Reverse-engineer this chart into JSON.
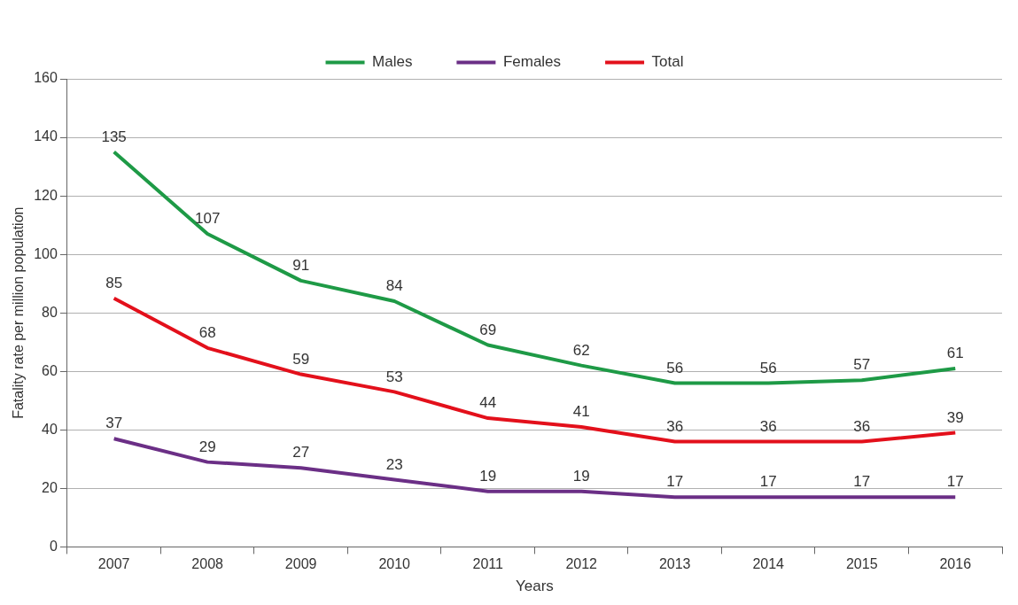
{
  "chart_data": {
    "type": "line",
    "xlabel": "Years",
    "ylabel": "Fatality rate per million population",
    "categories": [
      "2007",
      "2008",
      "2009",
      "2010",
      "2011",
      "2012",
      "2013",
      "2014",
      "2015",
      "2016"
    ],
    "series": [
      {
        "name": "Males",
        "color": "#1e9a46",
        "values": [
          135,
          107,
          91,
          84,
          69,
          62,
          56,
          56,
          57,
          61
        ]
      },
      {
        "name": "Females",
        "color": "#6b2f86",
        "values": [
          37,
          29,
          27,
          23,
          19,
          19,
          17,
          17,
          17,
          17
        ]
      },
      {
        "name": "Total",
        "color": "#e3101b",
        "values": [
          85,
          68,
          59,
          53,
          44,
          41,
          36,
          36,
          36,
          39
        ]
      }
    ],
    "ylim": [
      0,
      160
    ],
    "yticks": [
      0,
      20,
      40,
      60,
      80,
      100,
      120,
      140,
      160
    ],
    "grid": "y",
    "legend": "top",
    "marker": "none",
    "line_style": "solid",
    "data_labels": true
  }
}
